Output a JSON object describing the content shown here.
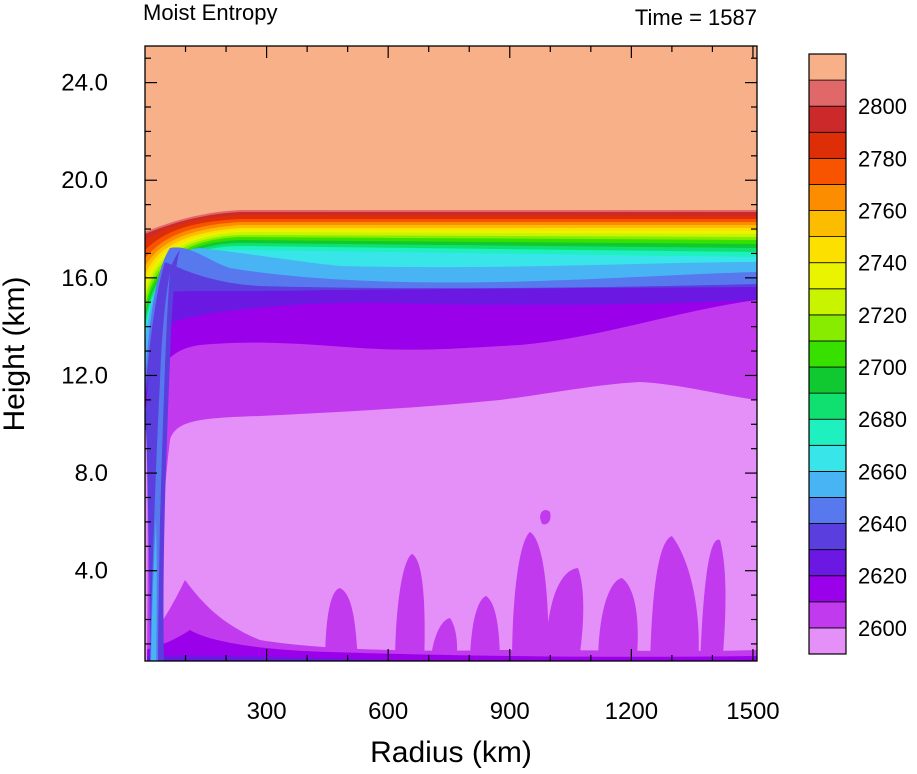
{
  "chart_data": {
    "type": "heatmap",
    "title": "Moist Entropy",
    "time_label": "Time = 1587",
    "xlabel": "Radius (km)",
    "ylabel": "Height (km)",
    "xlim": [
      0,
      1510
    ],
    "ylim": [
      0.3,
      25.5
    ],
    "x_ticks": [
      300,
      600,
      900,
      1200,
      1500
    ],
    "y_ticks": [
      4.0,
      8.0,
      12.0,
      16.0,
      20.0,
      24.0
    ],
    "x_tick_labels": [
      "300",
      "600",
      "900",
      "1200",
      "1500"
    ],
    "y_tick_labels": [
      "4.0",
      "8.0",
      "12.0",
      "16.0",
      "20.0",
      "24.0"
    ],
    "colorbar": {
      "min": 2590,
      "max": 2810,
      "step": 10,
      "tick_labels": [
        "2600",
        "2620",
        "2640",
        "2660",
        "2680",
        "2700",
        "2720",
        "2740",
        "2760",
        "2780",
        "2800"
      ],
      "colors": [
        "#e590f8",
        "#c23aee",
        "#9a00ea",
        "#6a18e2",
        "#5a3ede",
        "#5878ee",
        "#48b4f4",
        "#38e6ea",
        "#1ef0c0",
        "#10e070",
        "#10c830",
        "#38e000",
        "#88ec00",
        "#c8f400",
        "#eaf400",
        "#fce000",
        "#fcbc00",
        "#fc8c00",
        "#f85400",
        "#de2e08",
        "#cc2a2a",
        "#e06868",
        "#f8b088"
      ]
    },
    "field_description": [
      {
        "label": "2810+",
        "region": "upper layer above ~18 km"
      },
      {
        "label": "2600",
        "region": "broad interior 1-11 km"
      },
      {
        "label": "2620",
        "region": "band 11-15 km and near-surface plumes"
      },
      {
        "label": "2640-2660",
        "region": "eyewall column near r=50 km and 15.5-16.5 km band"
      },
      {
        "label": "2660-2800",
        "region": "tropopause gradient 16.5-18.5 km"
      }
    ]
  }
}
